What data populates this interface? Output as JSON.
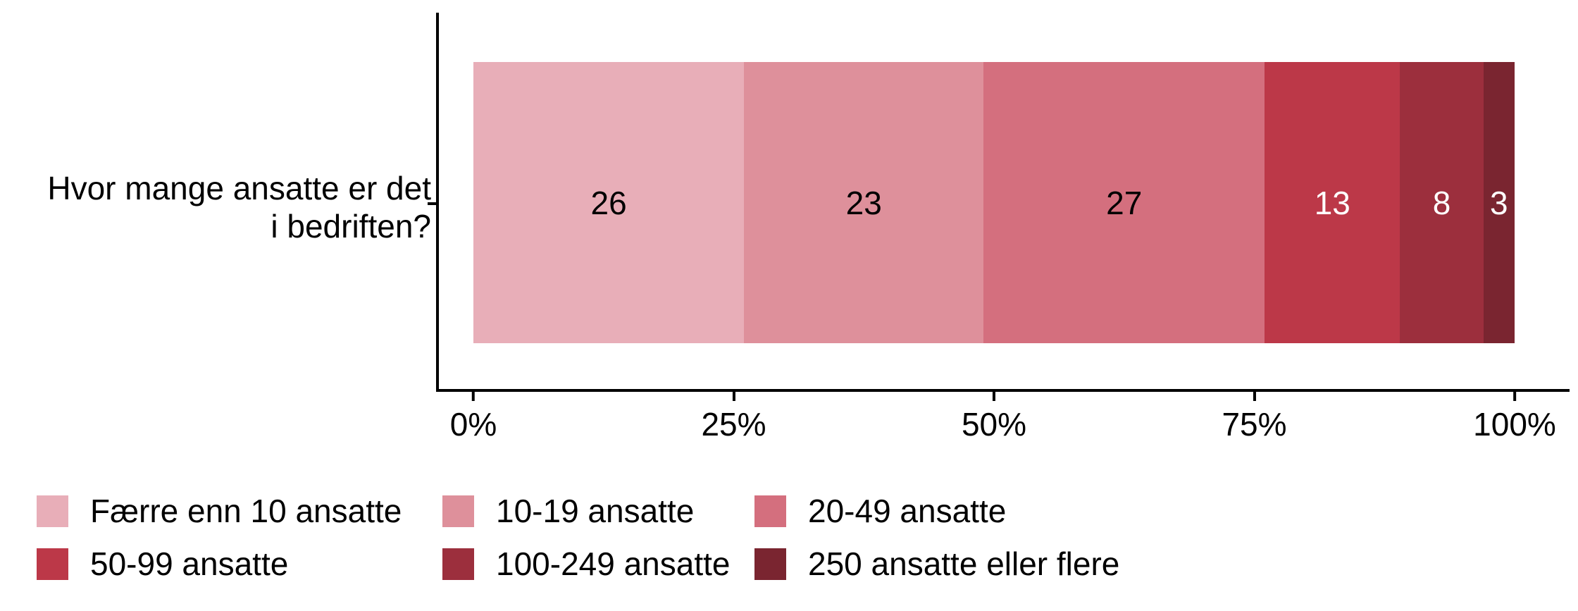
{
  "chart_data": {
    "type": "bar",
    "subtype": "horizontal-stacked-100-percent",
    "title": "",
    "question_label_lines": [
      "Hvor mange ansatte er det",
      "i bedriften?"
    ],
    "categories": [
      "Hvor mange ansatte er det i bedriften?"
    ],
    "series": [
      {
        "label": "Færre enn 10 ansatte",
        "value": 26,
        "color": "#E8AEB8",
        "value_label_color": "#000000"
      },
      {
        "label": "10-19 ansatte",
        "value": 23,
        "color": "#DE909B",
        "value_label_color": "#000000"
      },
      {
        "label": "20-49 ansatte",
        "value": 27,
        "color": "#D46F7E",
        "value_label_color": "#000000"
      },
      {
        "label": "50-99 ansatte",
        "value": 13,
        "color": "#BC3848",
        "value_label_color": "#FFFFFF"
      },
      {
        "label": "100-249 ansatte",
        "value": 8,
        "color": "#9C2F3D",
        "value_label_color": "#FFFFFF"
      },
      {
        "label": "250 ansatte eller flere",
        "value": 3,
        "color": "#7A2530",
        "value_label_color": "#FFFFFF"
      }
    ],
    "x_axis": {
      "tick_labels": [
        "0%",
        "25%",
        "50%",
        "75%",
        "100%"
      ],
      "tick_positions": [
        0,
        25,
        50,
        75,
        100
      ],
      "range": [
        0,
        100
      ]
    },
    "axis_color": "#000000",
    "background_color": "#FFFFFF",
    "grid": false,
    "legend_position": "bottom"
  }
}
